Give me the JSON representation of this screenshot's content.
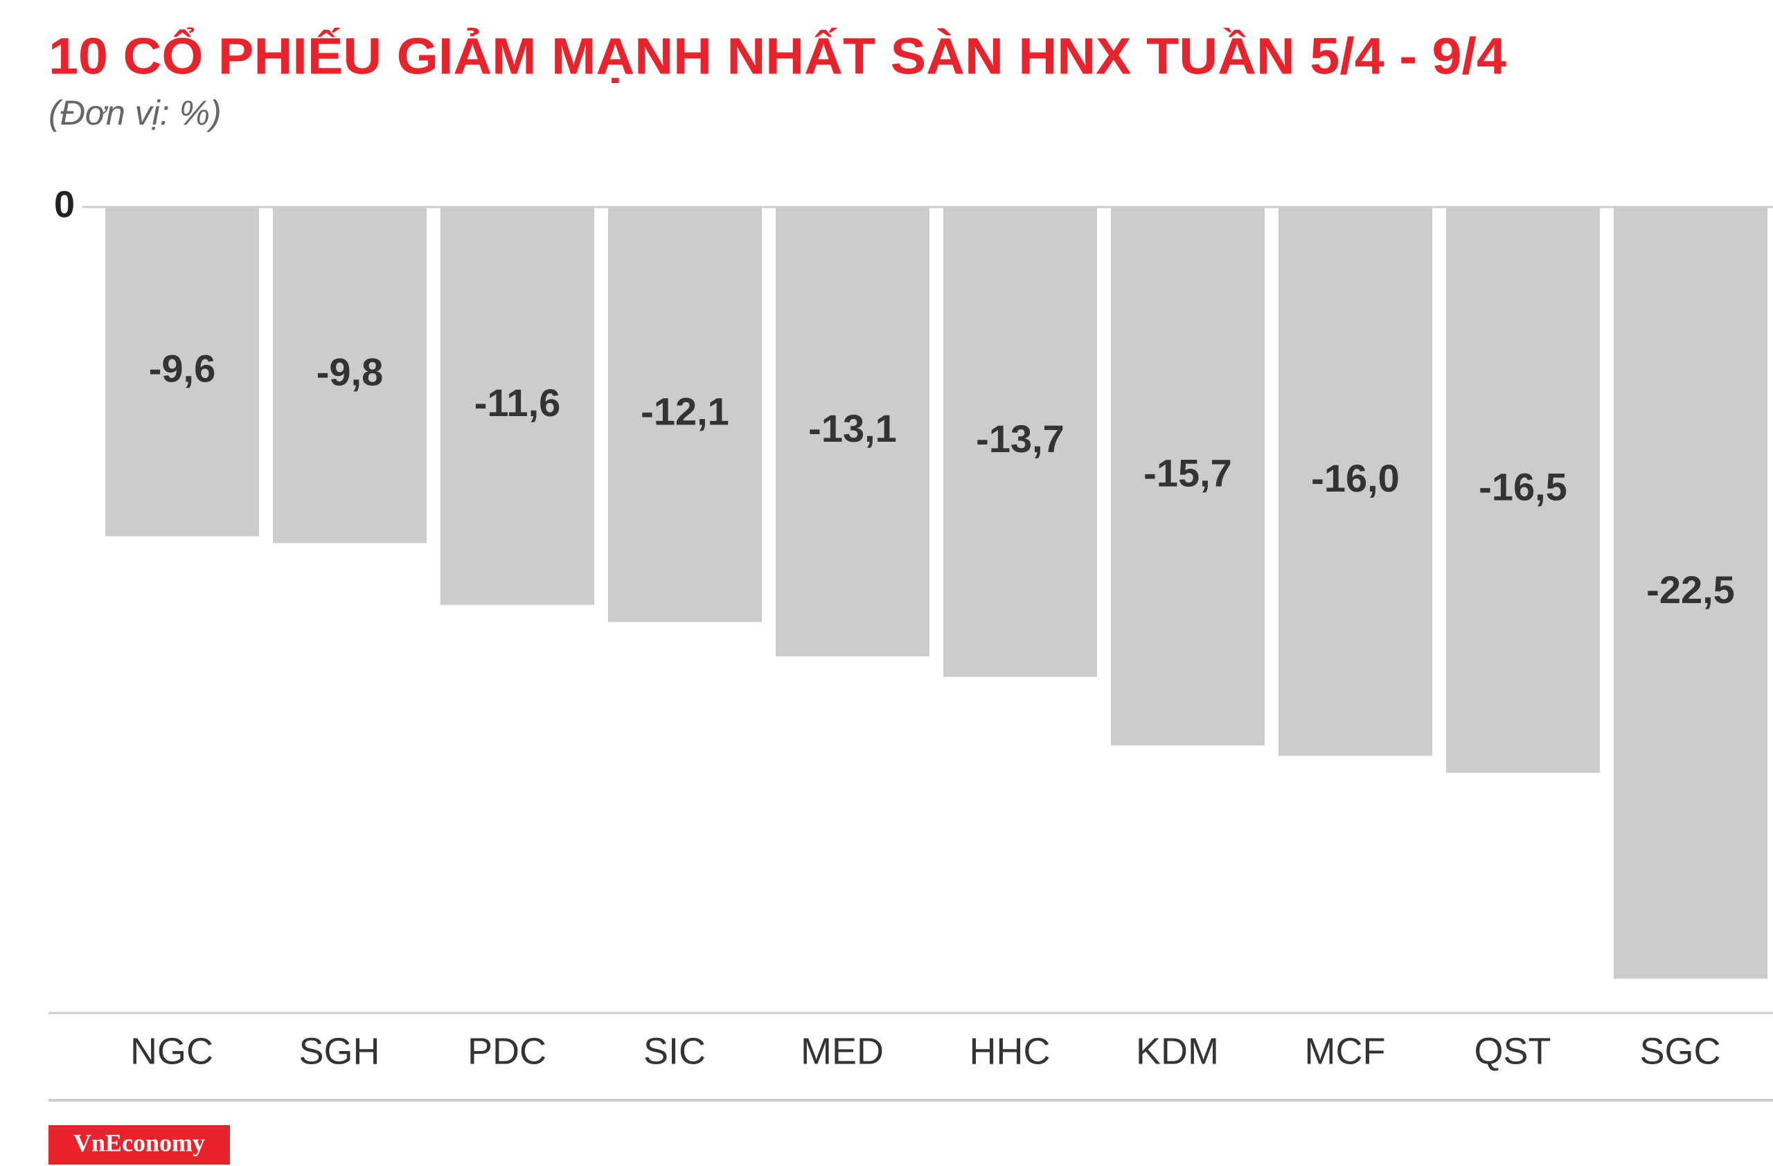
{
  "chart_data": {
    "type": "bar",
    "title": "10 CỔ PHIẾU GIẢM MẠNH NHẤT SÀN HNX TUẦN 5/4 - 9/4",
    "subtitle": "(Đơn vị: %)",
    "categories": [
      "NGC",
      "SGH",
      "PDC",
      "SIC",
      "MED",
      "HHC",
      "KDM",
      "MCF",
      "QST",
      "SGC"
    ],
    "values": [
      -9.6,
      -9.8,
      -11.6,
      -12.1,
      -13.1,
      -13.7,
      -15.7,
      -16.0,
      -16.5,
      -22.5
    ],
    "value_labels": [
      "-9,6",
      "-9,8",
      "-11,6",
      "-12,1",
      "-13,1",
      "-13,7",
      "-15,7",
      "-16,0",
      "-16,5",
      "-22,5"
    ],
    "color": "#cccccc",
    "ylim": [
      -23.5,
      0
    ],
    "yticks": [
      0
    ]
  },
  "brand": "VnEconomy"
}
